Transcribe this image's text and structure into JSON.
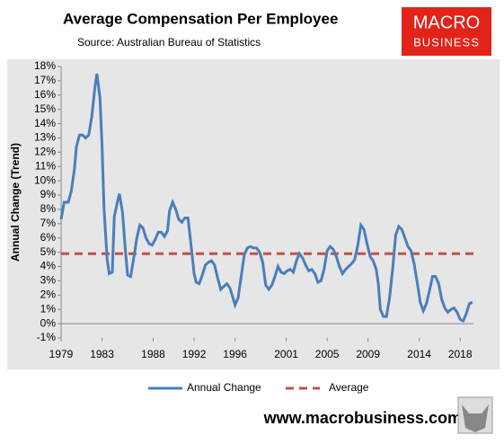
{
  "chart_data": {
    "type": "line",
    "title": "Average Compensation Per Employee",
    "subtitle": "Source: Australian Bureau of Statistics",
    "y_label": "Annual Change (Trend)",
    "logo": [
      "MACRO",
      "BUSINESS"
    ],
    "footer": "www.macrobusiness.com.au",
    "x": [
      1979.0,
      1979.3,
      1979.7,
      1980.0,
      1980.3,
      1980.5,
      1980.8,
      1981.1,
      1981.4,
      1981.7,
      1982.0,
      1982.3,
      1982.5,
      1982.8,
      1983.0,
      1983.2,
      1983.5,
      1983.7,
      1984.0,
      1984.2,
      1984.5,
      1984.7,
      1985.0,
      1985.3,
      1985.5,
      1985.8,
      1986.1,
      1986.4,
      1986.7,
      1987.0,
      1987.3,
      1987.6,
      1987.9,
      1988.2,
      1988.5,
      1988.8,
      1989.1,
      1989.4,
      1989.6,
      1989.9,
      1990.2,
      1990.5,
      1990.8,
      1991.1,
      1991.4,
      1991.7,
      1992.0,
      1992.2,
      1992.5,
      1992.8,
      1993.1,
      1993.4,
      1993.7,
      1994.0,
      1994.3,
      1994.6,
      1994.9,
      1995.2,
      1995.5,
      1995.8,
      1996.0,
      1996.3,
      1996.6,
      1996.9,
      1997.2,
      1997.5,
      1997.8,
      1998.1,
      1998.4,
      1998.7,
      1999.0,
      1999.3,
      1999.6,
      1999.9,
      2000.2,
      2000.5,
      2000.8,
      2001.1,
      2001.4,
      2001.7,
      2002.0,
      2002.3,
      2002.6,
      2002.9,
      2003.2,
      2003.5,
      2003.8,
      2004.1,
      2004.4,
      2004.7,
      2005.0,
      2005.3,
      2005.6,
      2005.9,
      2006.2,
      2006.5,
      2006.8,
      2007.1,
      2007.4,
      2007.7,
      2008.0,
      2008.3,
      2008.6,
      2008.9,
      2009.2,
      2009.5,
      2009.8,
      2010.0,
      2010.2,
      2010.5,
      2010.8,
      2011.1,
      2011.4,
      2011.7,
      2012.0,
      2012.3,
      2012.6,
      2012.9,
      2013.2,
      2013.5,
      2013.8,
      2014.1,
      2014.4,
      2014.7,
      2015.0,
      2015.3,
      2015.6,
      2015.9,
      2016.2,
      2016.5,
      2016.8,
      2017.1,
      2017.4,
      2017.7,
      2018.0,
      2018.3,
      2018.6,
      2018.9,
      2019.2
    ],
    "series": [
      {
        "name": "Annual Change",
        "color": "#4a7ebb",
        "values": [
          7.3,
          8.5,
          8.5,
          9.3,
          10.8,
          12.4,
          13.2,
          13.2,
          13.0,
          13.2,
          14.5,
          16.5,
          17.5,
          15.8,
          12.5,
          8.0,
          4.5,
          3.5,
          3.6,
          7.5,
          8.5,
          9.1,
          7.8,
          5.0,
          3.4,
          3.3,
          4.6,
          6.0,
          6.9,
          6.7,
          6.0,
          5.6,
          5.5,
          5.9,
          6.4,
          6.4,
          6.1,
          6.5,
          7.9,
          8.5,
          8.0,
          7.3,
          7.1,
          7.4,
          7.4,
          5.5,
          3.5,
          2.9,
          2.8,
          3.4,
          4.1,
          4.3,
          4.4,
          4.1,
          3.2,
          2.4,
          2.6,
          2.8,
          2.5,
          1.8,
          1.3,
          1.8,
          3.3,
          4.8,
          5.3,
          5.4,
          5.3,
          5.3,
          5.0,
          4.3,
          2.7,
          2.4,
          2.7,
          3.3,
          4.0,
          3.6,
          3.5,
          3.7,
          3.8,
          3.6,
          4.4,
          4.9,
          4.6,
          4.1,
          3.7,
          3.8,
          3.5,
          2.9,
          3.0,
          3.8,
          5.1,
          5.4,
          5.2,
          4.7,
          4.0,
          3.5,
          3.8,
          4.0,
          4.2,
          4.5,
          5.5,
          6.9,
          6.6,
          5.6,
          4.7,
          4.4,
          3.8,
          2.8,
          1.0,
          0.5,
          0.5,
          1.8,
          3.8,
          6.2,
          6.8,
          6.6,
          6.0,
          5.4,
          5.1,
          4.2,
          2.9,
          1.5,
          0.9,
          1.4,
          2.3,
          3.3,
          3.3,
          2.8,
          1.7,
          1.1,
          0.8,
          1.0,
          1.1,
          0.8,
          0.3,
          0.2,
          0.7,
          1.4,
          1.5
        ]
      }
    ],
    "average": {
      "name": "Average",
      "color": "#c0504d",
      "value": 4.9
    },
    "xlim": [
      1979,
      2019.3
    ],
    "xticks": [
      1979,
      1983,
      1988,
      1992,
      1996,
      2001,
      2005,
      2009,
      2014,
      2018
    ],
    "ylim": [
      -1,
      18
    ],
    "yticks": [
      {
        "value": -1,
        "label": "-1%"
      },
      {
        "value": 0,
        "label": "0%"
      },
      {
        "value": 1,
        "label": "1%"
      },
      {
        "value": 2,
        "label": "2%"
      },
      {
        "value": 3,
        "label": "3%"
      },
      {
        "value": 4,
        "label": "4%"
      },
      {
        "value": 5,
        "label": "5%"
      },
      {
        "value": 6,
        "label": "6%"
      },
      {
        "value": 7,
        "label": "7%"
      },
      {
        "value": 8,
        "label": "8%"
      },
      {
        "value": 9,
        "label": "9%"
      },
      {
        "value": 10,
        "label": "10%"
      },
      {
        "value": 11,
        "label": "11%"
      },
      {
        "value": 12,
        "label": "12%"
      },
      {
        "value": 13,
        "label": "13%"
      },
      {
        "value": 14,
        "label": "14%"
      },
      {
        "value": 15,
        "label": "15%"
      },
      {
        "value": 16,
        "label": "16%"
      },
      {
        "value": 17,
        "label": "17%"
      },
      {
        "value": 18,
        "label": "18%"
      }
    ]
  }
}
